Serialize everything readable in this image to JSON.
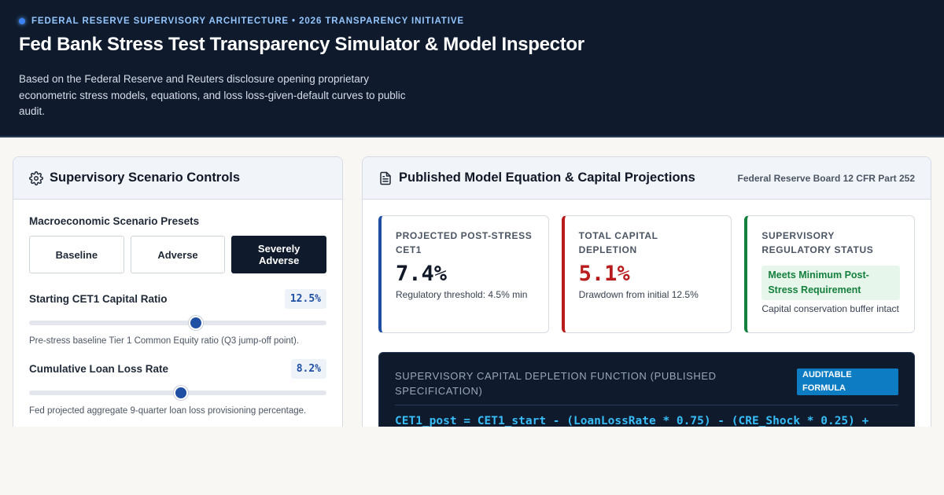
{
  "header": {
    "eyebrow": "FEDERAL RESERVE SUPERVISORY ARCHITECTURE • 2026 TRANSPARENCY INITIATIVE",
    "title": "Fed Bank Stress Test Transparency Simulator & Model Inspector",
    "subtitle": "Based on the Federal Reserve and Reuters disclosure opening proprietary econometric stress models, equations, and loss loss-given-default curves to public audit."
  },
  "controls": {
    "title": "Supervisory Scenario Controls",
    "icon": "gear-icon",
    "presets_label": "Macroeconomic Scenario Presets",
    "presets": [
      {
        "label": "Baseline",
        "active": false
      },
      {
        "label": "Adverse",
        "active": false
      },
      {
        "label": "Severely Adverse",
        "active": true
      }
    ],
    "cet1": {
      "label": "Starting CET1 Capital Ratio",
      "value": "12.5%",
      "level": 0.56,
      "help": "Pre-stress baseline Tier 1 Common Equity ratio (Q3 jump-off point)."
    },
    "loss_rate": {
      "label": "Cumulative Loan Loss Rate",
      "value": "8.2%",
      "level": 0.51,
      "help": "Fed projected aggregate 9-quarter loan loss provisioning percentage."
    }
  },
  "projections": {
    "title": "Published Model Equation & Capital Projections",
    "icon": "document-icon",
    "reference": "Federal Reserve Board 12 CFR Part 252",
    "metrics": [
      {
        "label": "PROJECTED POST-STRESS CET1",
        "value": "7.4%",
        "note": "Regulatory threshold: 4.5% min"
      },
      {
        "label": "TOTAL CAPITAL DEPLETION",
        "value": "5.1%",
        "note": "Drawdown from initial 12.5%"
      },
      {
        "label": "SUPERVISORY REGULATORY STATUS",
        "status": "Meets Minimum Post-Stress Requirement",
        "note": "Capital conservation buffer intact"
      }
    ],
    "formula": {
      "title": "SUPERVISORY CAPITAL DEPLETION FUNCTION (PUBLISHED SPECIFICATION)",
      "badge": "AUDITABLE FORMULA",
      "code": "CET1_post = CET1_start - (LoanLossRate * 0.75) - (CRE_Shock * 0.25) +"
    }
  },
  "colors": {
    "navy": "#0f1b2d",
    "accent_blue": "#1e4fa3",
    "alert_red": "#b91c1c",
    "ok_green": "#15803d",
    "code_cyan": "#38bdf8"
  }
}
